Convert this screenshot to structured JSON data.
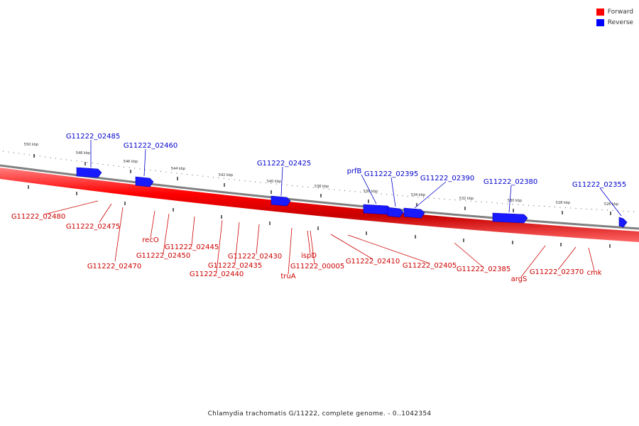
{
  "legend": [
    {
      "label": "Forward",
      "color": "#ff0000"
    },
    {
      "label": "Reverse",
      "color": "#0000ff"
    }
  ],
  "caption": "Chlamydia trachomatis G/11222, complete genome. - 0..1042354",
  "scale_labels": [
    "550 kbp",
    "548 kbp",
    "546 kbp",
    "544 kbp",
    "542 kbp",
    "540 kbp",
    "538 kbp",
    "536 kbp",
    "534 kbp",
    "532 kbp",
    "530 kbp",
    "528 kbp",
    "526 kbp"
  ],
  "reverse_genes": [
    "G11222_02485",
    "G11222_02460",
    "G11222_02425",
    "prfB",
    "G11222_02395",
    "G11222_02390",
    "G11222_02380",
    "G11222_02355"
  ],
  "forward_genes": [
    "G11222_02480",
    "G11222_02475",
    "G11222_02470",
    "recO",
    "G11222_02450",
    "G11222_02445",
    "G11222_02440",
    "G11222_02435",
    "G11222_02430",
    "truA",
    "G11222_00005",
    "ispD",
    "G11222_02410",
    "G11222_02405",
    "G11222_02385",
    "argS",
    "G11222_02370",
    "cmk"
  ]
}
